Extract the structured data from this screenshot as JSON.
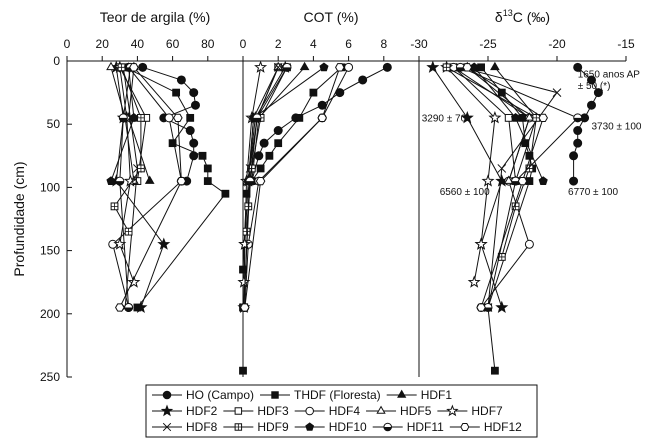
{
  "chart_data": {
    "type": "line",
    "figure": "depth-profiles",
    "ylabel": "Profundidade (cm)",
    "ylim": [
      250,
      0
    ],
    "yticks": [
      0,
      50,
      100,
      150,
      200,
      250
    ],
    "colors": {
      "line": "#111111",
      "fill": "#111111",
      "hollow": "#ffffff"
    },
    "panels": [
      {
        "title": "Teor de argila (%)",
        "title_parts": {
          "text": "Teor de argila (%)"
        },
        "xlim": [
          0,
          100
        ],
        "xticks": [
          0,
          20,
          40,
          60,
          80
        ],
        "annotations": []
      },
      {
        "title": "COT (%)",
        "title_parts": {
          "text": "COT (%)"
        },
        "xlim": [
          0,
          10
        ],
        "xticks": [
          0,
          2,
          4,
          6,
          8
        ],
        "annotations": []
      },
      {
        "title": "δ13C (‰)",
        "title_parts": {
          "pre": "δ",
          "sup": "13",
          "post": "C (‰)"
        },
        "xlim": [
          -30,
          -15
        ],
        "xticks": [
          -30,
          -25,
          -20,
          -15
        ],
        "annotations": [
          {
            "text": "1650 anos AP",
            "x": -18.5,
            "y": 13
          },
          {
            "text": "± 50 (*)",
            "x": -18.5,
            "y": 22
          },
          {
            "text": "3290 ± 70",
            "x": -29.8,
            "y": 48
          },
          {
            "text": "3730 ± 100",
            "x": -17.5,
            "y": 54
          },
          {
            "text": "6560 ± 100",
            "x": -28.5,
            "y": 106
          },
          {
            "text": "6770 ± 100",
            "x": -19.2,
            "y": 106
          }
        ]
      }
    ],
    "series": [
      {
        "name": "HO (Campo)",
        "marker": "circle-filled",
        "panels": [
          {
            "x": [
              43,
              65,
              72,
              73,
              55,
              70,
              72,
              72,
              68
            ],
            "y": [
              5,
              15,
              25,
              35,
              45,
              55,
              65,
              75,
              95
            ]
          },
          {
            "x": [
              8.2,
              6.8,
              5.5,
              4.5,
              3.0,
              2.0,
              1.2,
              0.9,
              0.5
            ],
            "y": [
              5,
              15,
              25,
              35,
              45,
              55,
              65,
              75,
              95
            ]
          },
          {
            "x": [
              -18.5,
              -17.5,
              -17.0,
              -17.5,
              -18.0,
              -18.5,
              -18.5,
              -18.8,
              -18.8
            ],
            "y": [
              5,
              15,
              25,
              35,
              45,
              55,
              65,
              75,
              95
            ]
          }
        ]
      },
      {
        "name": "THDF (Floresta)",
        "marker": "square-filled",
        "panels": [
          {
            "x": [
              33,
              62,
              70,
              60,
              77,
              80,
              80,
              90,
              40
            ],
            "y": [
              5,
              25,
              45,
              65,
              75,
              85,
              95,
              105,
              195
            ]
          },
          {
            "x": [
              5.6,
              4.0,
              3.2,
              2.0,
              1.5,
              1.0,
              0.5,
              0.2,
              0.0,
              0.0,
              0.0
            ],
            "y": [
              5,
              25,
              45,
              65,
              75,
              85,
              95,
              105,
              165,
              195,
              245
            ]
          },
          {
            "x": [
              -25.5,
              -24.0,
              -22.5,
              -22.3,
              -22.0,
              -21.8,
              -22.0,
              -25.0,
              -24.5
            ],
            "y": [
              5,
              25,
              45,
              65,
              75,
              85,
              95,
              195,
              245
            ]
          }
        ]
      },
      {
        "name": "HDF1",
        "marker": "triangle-filled",
        "panels": [
          {
            "x": [
              38,
              35,
              47
            ],
            "y": [
              5,
              45,
              95
            ]
          },
          {
            "x": [
              3.5,
              0.9,
              0.5
            ],
            "y": [
              5,
              45,
              95
            ]
          },
          {
            "x": [
              -24.5,
              -21.5,
              -23.0
            ],
            "y": [
              5,
              45,
              95
            ]
          }
        ]
      },
      {
        "name": "HDF2",
        "marker": "star-filled",
        "panels": [
          {
            "x": [
              28,
              32,
              28,
              55,
              42
            ],
            "y": [
              5,
              45,
              95,
              145,
              195
            ]
          },
          {
            "x": [
              2.4,
              0.7,
              0.3,
              0.1,
              0.05
            ],
            "y": [
              5,
              45,
              95,
              145,
              195
            ]
          },
          {
            "x": [
              -29.0,
              -26.5,
              -24.0,
              -25.5,
              -24.0
            ],
            "y": [
              5,
              45,
              95,
              145,
              195
            ]
          }
        ]
      },
      {
        "name": "HDF3",
        "marker": "square-open",
        "panels": [
          {
            "x": [
              30,
              45,
              40
            ],
            "y": [
              5,
              45,
              95
            ]
          },
          {
            "x": [
              2.0,
              0.8,
              0.4
            ],
            "y": [
              5,
              45,
              95
            ]
          },
          {
            "x": [
              -27.5,
              -23.5,
              -23.0
            ],
            "y": [
              5,
              45,
              95
            ]
          }
        ]
      },
      {
        "name": "HDF4",
        "marker": "circle-open",
        "panels": [
          {
            "x": [
              35,
              58,
              65,
              26,
              35
            ],
            "y": [
              5,
              45,
              95,
              145,
              195
            ]
          },
          {
            "x": [
              6.0,
              4.5,
              0.9,
              0.3,
              0.1
            ],
            "y": [
              5,
              45,
              95,
              145,
              195
            ]
          },
          {
            "x": [
              -27.5,
              -22.0,
              -23.5,
              -22.0,
              -25.5
            ],
            "y": [
              5,
              45,
              95,
              145,
              195
            ]
          }
        ]
      },
      {
        "name": "HDF5",
        "marker": "triangle-open",
        "panels": [
          {
            "x": [
              25,
              33,
              38
            ],
            "y": [
              5,
              45,
              95
            ]
          },
          {
            "x": [
              2.0,
              0.6,
              0.3
            ],
            "y": [
              5,
              45,
              95
            ]
          },
          {
            "x": [
              -26.5,
              -22.0,
              -23.5
            ],
            "y": [
              5,
              45,
              95
            ]
          }
        ]
      },
      {
        "name": "HDF7",
        "marker": "star-open",
        "panels": [
          {
            "x": [
              30,
              34,
              36,
              30,
              38
            ],
            "y": [
              5,
              45,
              95,
              145,
              175
            ]
          },
          {
            "x": [
              1.0,
              0.5,
              0.2,
              0.1,
              0.05
            ],
            "y": [
              5,
              45,
              95,
              145,
              175
            ]
          },
          {
            "x": [
              -28.0,
              -24.5,
              -25.0,
              -25.5,
              -26.0
            ],
            "y": [
              5,
              45,
              95,
              145,
              175
            ]
          }
        ]
      },
      {
        "name": "HDF8",
        "marker": "cross",
        "panels": [
          {
            "x": [
              32,
              36,
              40,
              33
            ],
            "y": [
              5,
              45,
              85,
              195
            ]
          },
          {
            "x": [
              2.0,
              0.8,
              0.4,
              0.05
            ],
            "y": [
              5,
              45,
              85,
              195
            ]
          },
          {
            "x": [
              -27.0,
              -20.0,
              -24.0,
              -25.0
            ],
            "y": [
              5,
              25,
              85,
              195
            ]
          }
        ]
      },
      {
        "name": "HDF9",
        "marker": "square-plus",
        "panels": [
          {
            "x": [
              31,
              42,
              42,
              27,
              35
            ],
            "y": [
              5,
              45,
              85,
              115,
              135
            ]
          },
          {
            "x": [
              2.5,
              1.0,
              0.5,
              0.3,
              0.2
            ],
            "y": [
              5,
              45,
              85,
              115,
              135
            ]
          },
          {
            "x": [
              -28.0,
              -21.5,
              -22.0,
              -23.0,
              -24.0
            ],
            "y": [
              5,
              45,
              85,
              115,
              155
            ]
          }
        ]
      },
      {
        "name": "HDF10",
        "marker": "pentagon-filled",
        "panels": [
          {
            "x": [
              35,
              38,
              25
            ],
            "y": [
              5,
              45,
              95
            ]
          },
          {
            "x": [
              4.6,
              0.6,
              0.3
            ],
            "y": [
              5,
              45,
              95
            ]
          },
          {
            "x": [
              -26.0,
              -23.0,
              -21.0
            ],
            "y": [
              5,
              45,
              95
            ]
          }
        ]
      },
      {
        "name": "HDF11",
        "marker": "half-circle",
        "panels": [
          {
            "x": [
              36,
              32,
              30,
              35
            ],
            "y": [
              5,
              45,
              95,
              195
            ]
          },
          {
            "x": [
              2.5,
              0.8,
              0.4,
              0.05
            ],
            "y": [
              5,
              45,
              95,
              195
            ]
          },
          {
            "x": [
              -27.0,
              -18.5,
              -23.0,
              -25.0
            ],
            "y": [
              5,
              45,
              95,
              195
            ]
          }
        ]
      },
      {
        "name": "HDF12",
        "marker": "hexagon-open",
        "panels": [
          {
            "x": [
              38,
              63,
              65,
              30
            ],
            "y": [
              5,
              45,
              95,
              195
            ]
          },
          {
            "x": [
              5.5,
              4.5,
              1.0,
              0.1
            ],
            "y": [
              5,
              45,
              95,
              195
            ]
          },
          {
            "x": [
              -26.5,
              -21.0,
              -22.5,
              -25.5
            ],
            "y": [
              5,
              45,
              95,
              195
            ]
          }
        ]
      }
    ]
  }
}
